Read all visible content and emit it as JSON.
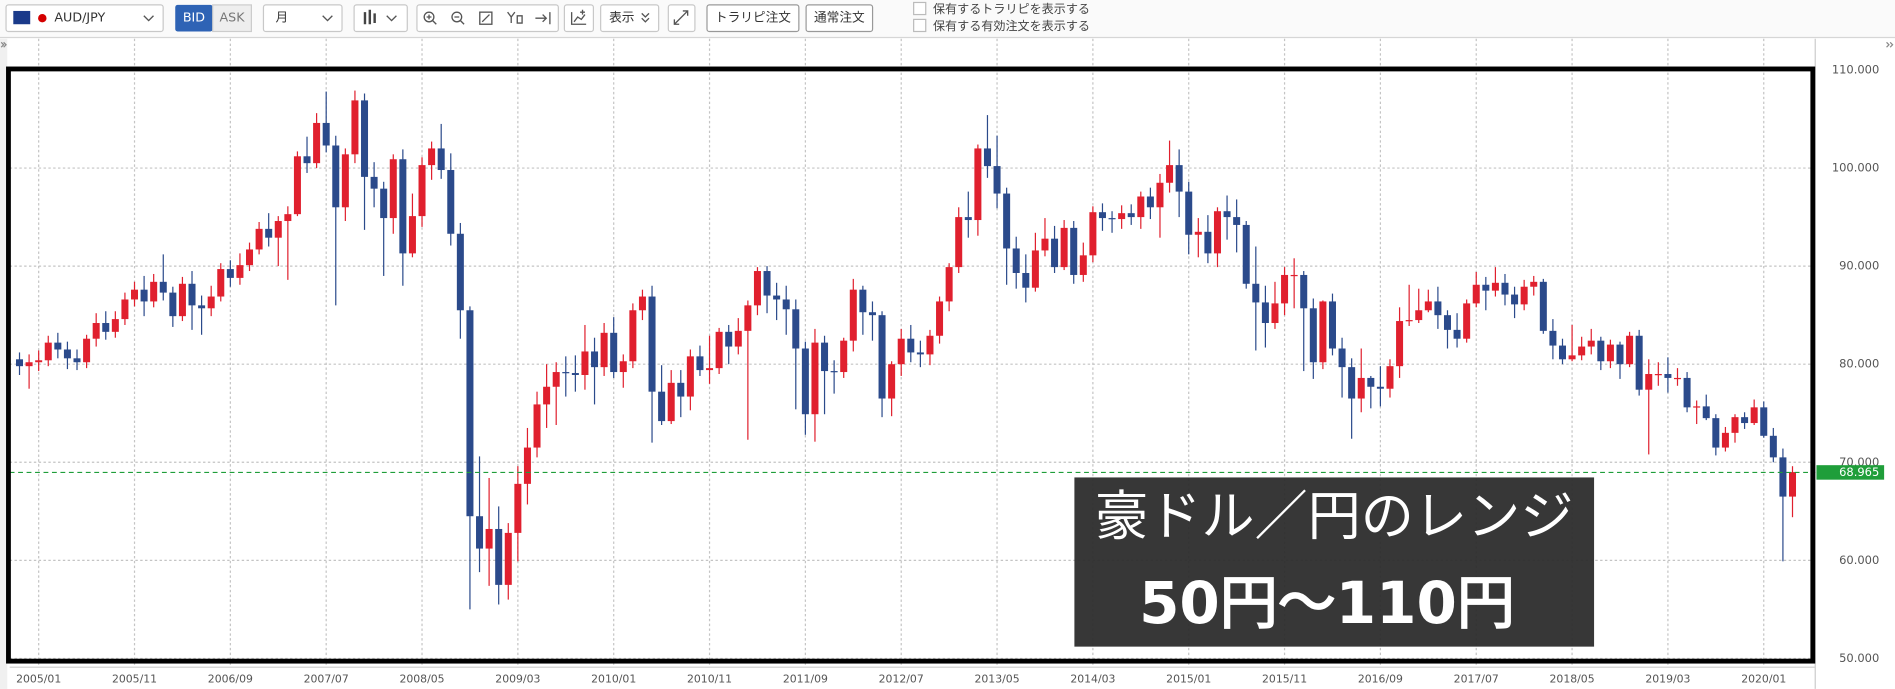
{
  "toolbar": {
    "symbol": "AUD/JPY",
    "bid": "BID",
    "ask": "ASK",
    "period": "月",
    "display": "表示",
    "buttons": [
      "トラリピ注文",
      "通常注文"
    ],
    "checkboxes": [
      "保有するトラリピを表示する",
      "保有する有効注文を表示する"
    ]
  },
  "chart_data": {
    "type": "candlestick",
    "categories": [
      null,
      null,
      "2005/01",
      null,
      null,
      null,
      null,
      null,
      null,
      null,
      null,
      null,
      "2005/11",
      null,
      null,
      null,
      null,
      null,
      null,
      null,
      null,
      null,
      "2006/09",
      null,
      null,
      null,
      null,
      null,
      null,
      null,
      null,
      null,
      "2007/07",
      null,
      null,
      null,
      null,
      null,
      null,
      null,
      null,
      null,
      "2008/05",
      null,
      null,
      null,
      null,
      null,
      null,
      null,
      null,
      null,
      "2009/03",
      null,
      null,
      null,
      null,
      null,
      null,
      null,
      null,
      null,
      "2010/01",
      null,
      null,
      null,
      null,
      null,
      null,
      null,
      null,
      null,
      "2010/11",
      null,
      null,
      null,
      null,
      null,
      null,
      null,
      null,
      null,
      "2011/09",
      null,
      null,
      null,
      null,
      null,
      null,
      null,
      null,
      null,
      "2012/07",
      null,
      null,
      null,
      null,
      null,
      null,
      null,
      null,
      null,
      "2013/05",
      null,
      null,
      null,
      null,
      null,
      null,
      null,
      null,
      null,
      "2014/03",
      null,
      null,
      null,
      null,
      null,
      null,
      null,
      null,
      null,
      "2015/01",
      null,
      null,
      null,
      null,
      null,
      null,
      null,
      null,
      null,
      "2015/11",
      null,
      null,
      null,
      null,
      null,
      null,
      null,
      null,
      null,
      "2016/09",
      null,
      null,
      null,
      null,
      null,
      null,
      null,
      null,
      null,
      "2017/07",
      null,
      null,
      null,
      null,
      null,
      null,
      null,
      null,
      null,
      "2018/05",
      null,
      null,
      null,
      null,
      null,
      null,
      null,
      null,
      null,
      "2019/03",
      null,
      null,
      null,
      null,
      null,
      null,
      null,
      null,
      null,
      "2020/01",
      null,
      null,
      null
    ],
    "open": [
      80.5,
      79.8,
      80.2,
      80.4,
      82.2,
      81.5,
      80.6,
      80.2,
      82.6,
      84.2,
      83.3,
      84.6,
      86.6,
      87.6,
      86.4,
      88.4,
      87.3,
      84.9,
      88.2,
      86.0,
      85.7,
      86.9,
      89.7,
      88.8,
      90.1,
      91.7,
      93.8,
      92.9,
      94.6,
      95.3,
      101.2,
      100.5,
      104.6,
      102.3,
      96.0,
      101.4,
      106.9,
      99.1,
      97.9,
      94.9,
      100.9,
      91.3,
      95.1,
      100.3,
      102.0,
      99.8,
      93.3,
      85.5,
      64.5,
      61.2,
      63.2,
      57.5,
      62.8,
      67.8,
      71.5,
      75.9,
      77.7,
      79.2,
      79.1,
      78.9,
      81.3,
      79.7,
      83.2,
      79.2,
      80.3,
      85.5,
      86.9,
      77.2,
      74.2,
      78.1,
      76.7,
      80.8,
      79.4,
      79.6,
      83.3,
      81.8,
      83.4,
      86.0,
      89.5,
      87.0,
      86.6,
      85.6,
      81.6,
      74.9,
      82.2,
      79.3,
      79.2,
      82.4,
      87.6,
      85.3,
      85.0,
      76.5,
      80.0,
      82.6,
      81.2,
      81.0,
      82.9,
      86.4,
      89.9,
      95.0,
      94.7,
      102.0,
      100.2,
      97.4,
      91.8,
      89.3,
      87.8,
      91.6,
      92.8,
      89.9,
      93.9,
      89.1,
      91.1,
      95.5,
      94.9,
      94.8,
      95.4,
      95.0,
      97.1,
      96.0,
      98.5,
      100.3,
      97.6,
      93.2,
      93.5,
      91.3,
      95.6,
      95.0,
      94.2,
      88.2,
      86.3,
      84.2,
      86.2,
      89.1,
      89.1,
      85.7,
      80.2,
      86.4,
      81.6,
      79.7,
      76.5,
      78.6,
      77.7,
      77.5,
      79.8,
      84.4,
      84.5,
      85.5,
      86.4,
      85.0,
      83.5,
      82.6,
      86.2,
      88.1,
      87.5,
      88.3,
      87.1,
      86.1,
      87.9,
      88.4,
      83.4,
      81.9,
      80.5,
      80.9,
      81.8,
      82.4,
      80.3,
      82.0,
      80.0,
      82.9,
      77.4,
      79.0,
      79.0,
      78.6,
      78.6,
      75.6,
      75.7,
      74.5,
      71.5,
      73.0,
      74.6,
      74.0,
      75.6,
      72.7,
      70.5,
      66.5
    ],
    "high": [
      81.2,
      81.0,
      81.4,
      82.9,
      83.2,
      82.3,
      81.5,
      83.0,
      85.2,
      85.4,
      85.4,
      87.3,
      88.4,
      89.0,
      89.2,
      91.2,
      87.9,
      88.9,
      89.5,
      87.0,
      88.0,
      90.3,
      90.6,
      91.3,
      92.4,
      94.5,
      95.4,
      95.1,
      96.1,
      101.7,
      103.2,
      105.6,
      107.8,
      103.3,
      102.0,
      107.9,
      107.6,
      100.6,
      98.6,
      101.4,
      101.9,
      97.4,
      101.1,
      102.7,
      104.5,
      101.5,
      94.4,
      85.9,
      70.6,
      68.4,
      65.5,
      63.8,
      69.6,
      73.5,
      77.2,
      80.0,
      80.2,
      80.8,
      80.9,
      84.0,
      82.7,
      84.2,
      84.8,
      81.0,
      86.2,
      87.6,
      88.0,
      79.9,
      79.4,
      79.4,
      81.5,
      81.9,
      82.9,
      83.7,
      84.0,
      84.7,
      86.5,
      89.9,
      90.0,
      88.3,
      88.0,
      86.6,
      82.3,
      83.6,
      82.9,
      80.4,
      82.7,
      88.7,
      88.0,
      86.4,
      85.4,
      80.3,
      83.6,
      84.0,
      82.4,
      83.5,
      86.9,
      90.3,
      96.0,
      97.6,
      102.4,
      105.4,
      103.3,
      98.0,
      93.0,
      91.2,
      93.4,
      94.9,
      94.1,
      94.7,
      94.6,
      92.4,
      96.1,
      96.4,
      95.6,
      96.2,
      96.3,
      97.6,
      98.0,
      99.4,
      102.8,
      101.9,
      98.6,
      94.9,
      95.2,
      96.0,
      97.2,
      96.8,
      94.6,
      92.0,
      88.0,
      88.4,
      89.9,
      90.8,
      89.5,
      86.7,
      86.5,
      87.2,
      82.7,
      80.6,
      81.6,
      78.8,
      79.8,
      80.5,
      85.8,
      88.1,
      87.7,
      87.6,
      87.9,
      85.5,
      85.2,
      86.6,
      89.4,
      88.9,
      89.9,
      89.2,
      87.9,
      88.6,
      89.0,
      88.7,
      84.6,
      82.6,
      84.0,
      82.8,
      83.6,
      82.8,
      82.5,
      82.3,
      83.3,
      83.5,
      80.5,
      80.2,
      80.7,
      79.6,
      79.2,
      76.3,
      76.9,
      74.9,
      73.6,
      74.9,
      75.1,
      76.4,
      76.2,
      73.5,
      71.4,
      69.6
    ],
    "low": [
      78.9,
      77.5,
      79.3,
      79.8,
      80.6,
      79.5,
      79.4,
      79.6,
      81.8,
      82.5,
      82.7,
      84.0,
      85.9,
      84.9,
      85.8,
      86.5,
      83.8,
      84.4,
      83.5,
      83.0,
      84.9,
      86.4,
      87.9,
      88.1,
      89.5,
      91.2,
      92.0,
      90.0,
      88.6,
      95.1,
      99.5,
      100.0,
      101.6,
      86.0,
      94.6,
      100.5,
      93.7,
      96.0,
      89.0,
      93.3,
      88.0,
      90.9,
      94.0,
      98.8,
      98.9,
      92.1,
      82.6,
      55.0,
      58.8,
      57.4,
      55.5,
      56.0,
      59.9,
      65.7,
      70.5,
      73.5,
      73.8,
      76.7,
      77.2,
      77.4,
      75.9,
      78.8,
      78.6,
      77.6,
      79.6,
      84.5,
      72.0,
      73.8,
      73.9,
      74.6,
      75.3,
      78.8,
      78.0,
      79.0,
      80.0,
      81.0,
      72.3,
      85.0,
      85.2,
      84.5,
      83.0,
      75.4,
      72.8,
      72.1,
      74.9,
      77.0,
      78.6,
      81.3,
      83.0,
      82.4,
      74.6,
      74.7,
      78.8,
      80.2,
      79.7,
      79.9,
      82.1,
      85.4,
      89.3,
      92.9,
      93.1,
      99.0,
      95.9,
      88.1,
      87.7,
      86.3,
      87.4,
      91.0,
      89.3,
      89.6,
      88.2,
      88.4,
      90.4,
      93.6,
      93.4,
      93.8,
      94.2,
      93.8,
      94.8,
      92.9,
      97.5,
      95.0,
      91.2,
      90.9,
      90.3,
      89.9,
      92.7,
      91.4,
      87.7,
      81.4,
      81.7,
      83.6,
      85.0,
      85.7,
      79.3,
      78.5,
      79.5,
      80.9,
      76.6,
      72.4,
      75.1,
      75.5,
      75.7,
      76.6,
      78.6,
      83.9,
      84.2,
      85.3,
      83.6,
      81.6,
      81.7,
      82.2,
      85.8,
      85.5,
      86.9,
      86.0,
      84.7,
      85.5,
      87.0,
      83.1,
      80.5,
      80.0,
      80.3,
      80.4,
      81.0,
      79.4,
      79.6,
      78.5,
      79.7,
      76.8,
      70.8,
      77.8,
      77.1,
      77.8,
      75.1,
      73.9,
      74.3,
      70.7,
      71.1,
      72.0,
      73.4,
      73.8,
      72.5,
      70.0,
      59.9,
      64.4
    ],
    "close": [
      79.8,
      80.2,
      80.4,
      82.2,
      81.5,
      80.6,
      80.2,
      82.6,
      84.2,
      83.3,
      84.6,
      86.6,
      87.6,
      86.4,
      88.4,
      87.3,
      84.9,
      88.2,
      86.0,
      85.7,
      86.9,
      89.7,
      88.8,
      90.1,
      91.7,
      93.8,
      92.9,
      94.6,
      95.3,
      101.2,
      100.5,
      104.6,
      102.3,
      96.0,
      101.4,
      106.9,
      99.1,
      97.9,
      94.9,
      100.9,
      91.3,
      95.1,
      100.3,
      102.0,
      99.8,
      93.3,
      85.5,
      64.5,
      61.2,
      63.2,
      57.5,
      62.8,
      67.8,
      71.5,
      75.9,
      77.7,
      79.2,
      79.1,
      78.9,
      81.3,
      79.7,
      83.2,
      79.2,
      80.3,
      85.5,
      86.9,
      77.2,
      74.2,
      78.1,
      76.7,
      80.8,
      79.4,
      79.6,
      83.3,
      81.8,
      83.4,
      86.0,
      89.5,
      87.0,
      86.6,
      85.6,
      81.6,
      74.9,
      82.2,
      79.3,
      79.2,
      82.4,
      87.6,
      85.3,
      85.0,
      76.5,
      80.0,
      82.6,
      81.2,
      81.0,
      82.9,
      86.4,
      89.9,
      95.0,
      94.7,
      102.0,
      100.2,
      97.4,
      91.8,
      89.3,
      87.8,
      91.6,
      92.8,
      89.9,
      93.9,
      89.1,
      91.1,
      95.5,
      94.9,
      94.8,
      95.4,
      95.0,
      97.1,
      96.0,
      98.5,
      100.3,
      97.6,
      93.2,
      93.5,
      91.3,
      95.6,
      95.0,
      94.2,
      88.2,
      86.3,
      84.2,
      86.2,
      89.1,
      89.1,
      85.7,
      80.2,
      86.4,
      81.6,
      79.7,
      76.5,
      78.6,
      77.7,
      77.5,
      79.8,
      84.4,
      84.5,
      85.5,
      86.4,
      85.0,
      83.5,
      82.6,
      86.2,
      88.1,
      87.5,
      88.3,
      87.1,
      86.1,
      87.9,
      88.4,
      83.4,
      81.9,
      80.5,
      80.9,
      81.8,
      82.4,
      80.3,
      82.0,
      80.0,
      82.9,
      77.4,
      79.0,
      79.0,
      78.6,
      78.6,
      75.6,
      75.7,
      74.5,
      71.5,
      73.0,
      74.6,
      74.0,
      75.6,
      72.7,
      70.5,
      66.5,
      69.0
    ],
    "up_color": "#e0202e",
    "down_color": "#2b4a8b",
    "ylim": [
      49.6,
      112.2
    ],
    "yticks": [
      {
        "value": 50,
        "label": "50.000"
      },
      {
        "value": 60,
        "label": "60.000"
      },
      {
        "value": 70,
        "label": "70.000"
      },
      {
        "value": 80,
        "label": "80.000"
      },
      {
        "value": 90,
        "label": "90.000"
      },
      {
        "value": 100,
        "label": "100.000"
      },
      {
        "value": 110,
        "label": "110.000"
      }
    ],
    "grid": true,
    "current_price": 68.965,
    "current_price_color": "#1f9e3a",
    "annotations": {
      "title": "豪ドル／円のレンジ",
      "range": "50円～110円"
    }
  }
}
